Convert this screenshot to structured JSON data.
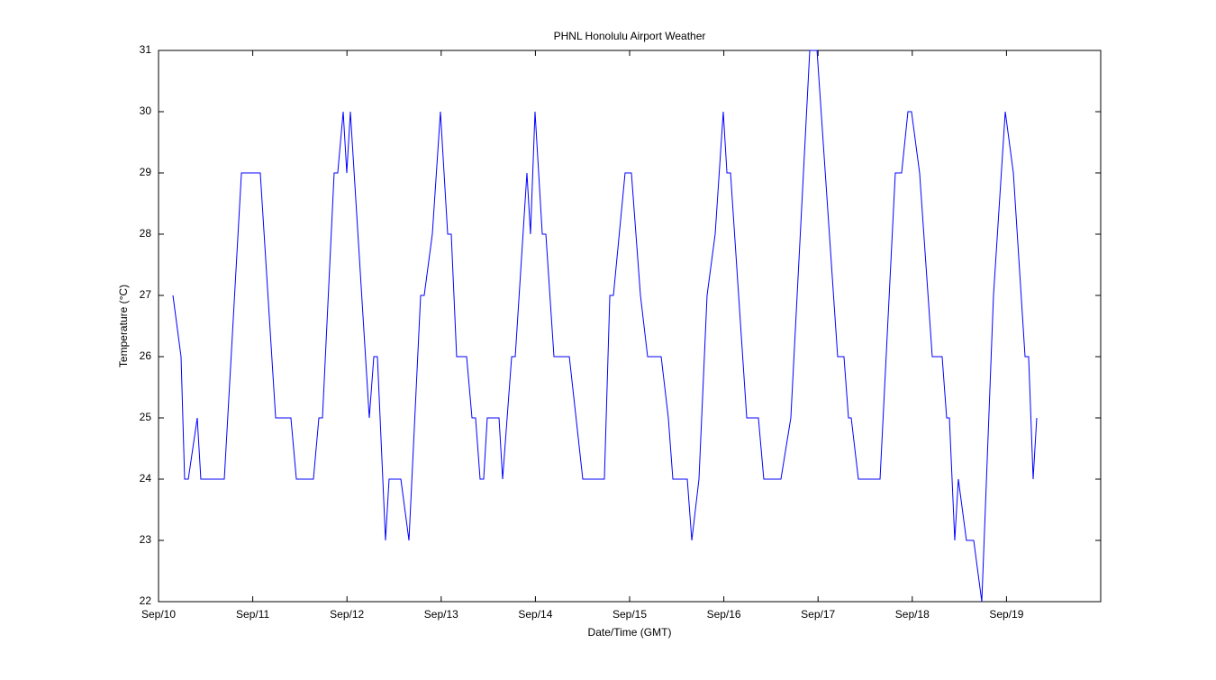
{
  "chart_data": {
    "type": "line",
    "title": "PHNL Honolulu Airport Weather",
    "xlabel": "Date/Time (GMT)",
    "ylabel": "Temperature (°C)",
    "x": [
      0.153,
      0.239,
      0.277,
      0.316,
      0.411,
      0.449,
      0.698,
      0.88,
      1.08,
      1.243,
      1.405,
      1.463,
      1.644,
      1.702,
      1.74,
      1.864,
      1.902,
      1.96,
      1.998,
      2.036,
      2.237,
      2.285,
      2.323,
      2.409,
      2.447,
      2.572,
      2.658,
      2.782,
      2.82,
      2.906,
      2.992,
      3.069,
      3.107,
      3.164,
      3.27,
      3.327,
      3.365,
      3.413,
      3.451,
      3.489,
      3.614,
      3.652,
      3.748,
      3.786,
      3.91,
      3.948,
      3.996,
      4.073,
      4.111,
      4.197,
      4.36,
      4.503,
      4.732,
      4.79,
      4.828,
      4.952,
      5.019,
      5.115,
      5.191,
      5.335,
      5.411,
      5.459,
      5.612,
      5.66,
      5.736,
      5.822,
      5.908,
      5.994,
      6.033,
      6.071,
      6.243,
      6.367,
      6.424,
      6.606,
      6.711,
      6.912,
      6.989,
      7.208,
      7.275,
      7.323,
      7.352,
      7.428,
      7.658,
      7.82,
      7.887,
      7.954,
      7.992,
      8.078,
      8.212,
      8.317,
      8.365,
      8.394,
      8.451,
      8.489,
      8.575,
      8.652,
      8.738,
      8.862,
      8.987,
      9.073,
      9.197,
      9.235,
      9.283,
      9.321
    ],
    "series": [
      {
        "name": "Temperature",
        "color": "#0000ff",
        "values": [
          27,
          26,
          24,
          24,
          25,
          24,
          24,
          29,
          29,
          25,
          25,
          24,
          24,
          25,
          25,
          29,
          29,
          30,
          29,
          30,
          25,
          26,
          26,
          23,
          24,
          24,
          23,
          27,
          27,
          28,
          30,
          28,
          28,
          26,
          26,
          25,
          25,
          24,
          24,
          25,
          25,
          24,
          26,
          26,
          29,
          28,
          30,
          28,
          28,
          26,
          26,
          24,
          24,
          27,
          27,
          29,
          29,
          27,
          26,
          26,
          25,
          24,
          24,
          23,
          24,
          27,
          28,
          30,
          29,
          29,
          25,
          25,
          24,
          24,
          25,
          31,
          31,
          26,
          26,
          25,
          25,
          24,
          24,
          29,
          29,
          30,
          30,
          29,
          26,
          26,
          25,
          25,
          23,
          24,
          23,
          23,
          22,
          27,
          30,
          29,
          26,
          26,
          24,
          25
        ]
      }
    ],
    "xlim": [
      0,
      10
    ],
    "ylim": [
      22,
      31
    ],
    "xticks": [
      {
        "value": 0,
        "label": "Sep/10"
      },
      {
        "value": 1,
        "label": "Sep/11"
      },
      {
        "value": 2,
        "label": "Sep/12"
      },
      {
        "value": 3,
        "label": "Sep/13"
      },
      {
        "value": 4,
        "label": "Sep/14"
      },
      {
        "value": 5,
        "label": "Sep/15"
      },
      {
        "value": 6,
        "label": "Sep/16"
      },
      {
        "value": 7,
        "label": "Sep/17"
      },
      {
        "value": 8,
        "label": "Sep/18"
      },
      {
        "value": 9,
        "label": "Sep/19"
      }
    ],
    "yticks": [
      22,
      23,
      24,
      25,
      26,
      27,
      28,
      29,
      30,
      31
    ],
    "grid": false
  }
}
